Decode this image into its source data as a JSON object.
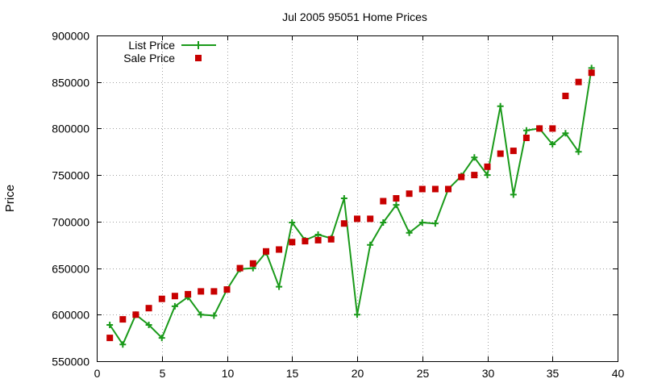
{
  "chart_data": {
    "type": "line",
    "title": "Jul 2005 95051 Home Prices",
    "xlabel": "",
    "ylabel": "Price",
    "xlim": [
      0,
      40
    ],
    "ylim": [
      550000,
      900000
    ],
    "x_ticks": [
      "0",
      "5",
      "10",
      "15",
      "20",
      "25",
      "30",
      "35",
      "40"
    ],
    "y_ticks": [
      "550000",
      "600000",
      "650000",
      "700000",
      "750000",
      "800000",
      "850000",
      "900000"
    ],
    "grid": true,
    "legend_position": "top-left",
    "x": [
      1,
      2,
      3,
      4,
      5,
      6,
      7,
      8,
      9,
      10,
      11,
      12,
      13,
      14,
      15,
      16,
      17,
      18,
      19,
      20,
      21,
      22,
      23,
      24,
      25,
      26,
      27,
      28,
      29,
      30,
      31,
      32,
      33,
      34,
      35,
      36,
      37,
      38
    ],
    "series": [
      {
        "name": "List Price",
        "style": "line-with-plus-markers",
        "color": "#1a9a1a",
        "values": [
          589000,
          568000,
          600000,
          589000,
          575000,
          609000,
          619000,
          600000,
          599000,
          627000,
          649000,
          650000,
          667000,
          630000,
          699000,
          680000,
          686000,
          682000,
          725000,
          600000,
          675000,
          699000,
          718000,
          688000,
          699000,
          698000,
          735000,
          749000,
          769000,
          750000,
          824000,
          729000,
          798000,
          800000,
          783000,
          795000,
          775000,
          865000
        ]
      },
      {
        "name": "Sale Price",
        "style": "square-markers",
        "color": "#c80000",
        "values": [
          575000,
          595000,
          600000,
          607000,
          617000,
          620000,
          622000,
          625000,
          625000,
          627000,
          650000,
          655000,
          668000,
          670000,
          678000,
          679000,
          680000,
          681000,
          698000,
          703000,
          703000,
          722000,
          725000,
          730000,
          735000,
          735000,
          735000,
          748000,
          750000,
          759000,
          773000,
          776000,
          790000,
          800000,
          800000,
          835000,
          850000,
          860000
        ]
      }
    ]
  }
}
